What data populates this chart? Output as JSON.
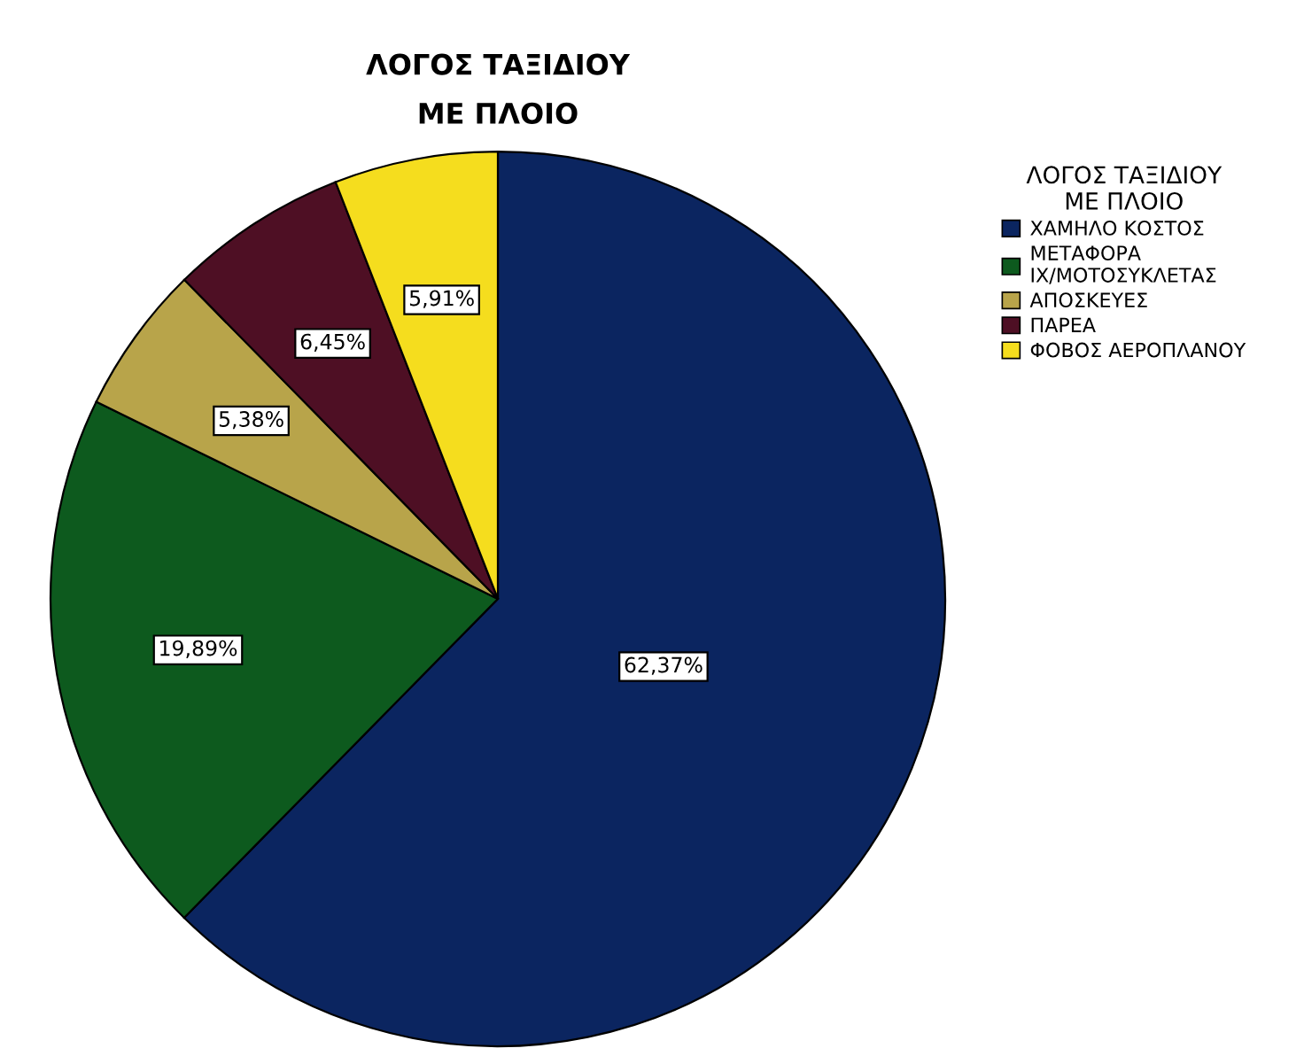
{
  "chart_data": {
    "type": "pie",
    "title": "ΛΟΓΟΣ ΤΑΞΙΔΙΟΥ\nΜΕ ΠΛΟΙΟ",
    "legend_title": "ΛΟΓΟΣ ΤΑΞΙΔΙΟΥ\nΜΕ ΠΛΟΙΟ",
    "categories": [
      "ΧΑΜΗΛΟ ΚΟΣΤΟΣ",
      "ΜΕΤΑΦΟΡΑ\nΙΧ/ΜΟΤΟΣΥΚΛΕΤΑΣ",
      "ΑΠΟΣΚΕΥΕΣ",
      "ΠΑΡΕΑ",
      "ΦΟΒΟΣ ΑΕΡΟΠΛΑΝΟΥ"
    ],
    "values": [
      62.37,
      19.89,
      5.38,
      6.45,
      5.91
    ],
    "value_labels": [
      "62,37%",
      "19,89%",
      "5,38%",
      "6,45%",
      "5,91%"
    ],
    "colors": [
      "#0b2560",
      "#0d5a1e",
      "#b8a44a",
      "#4e0f24",
      "#f5dd1e"
    ],
    "legend": "right"
  }
}
